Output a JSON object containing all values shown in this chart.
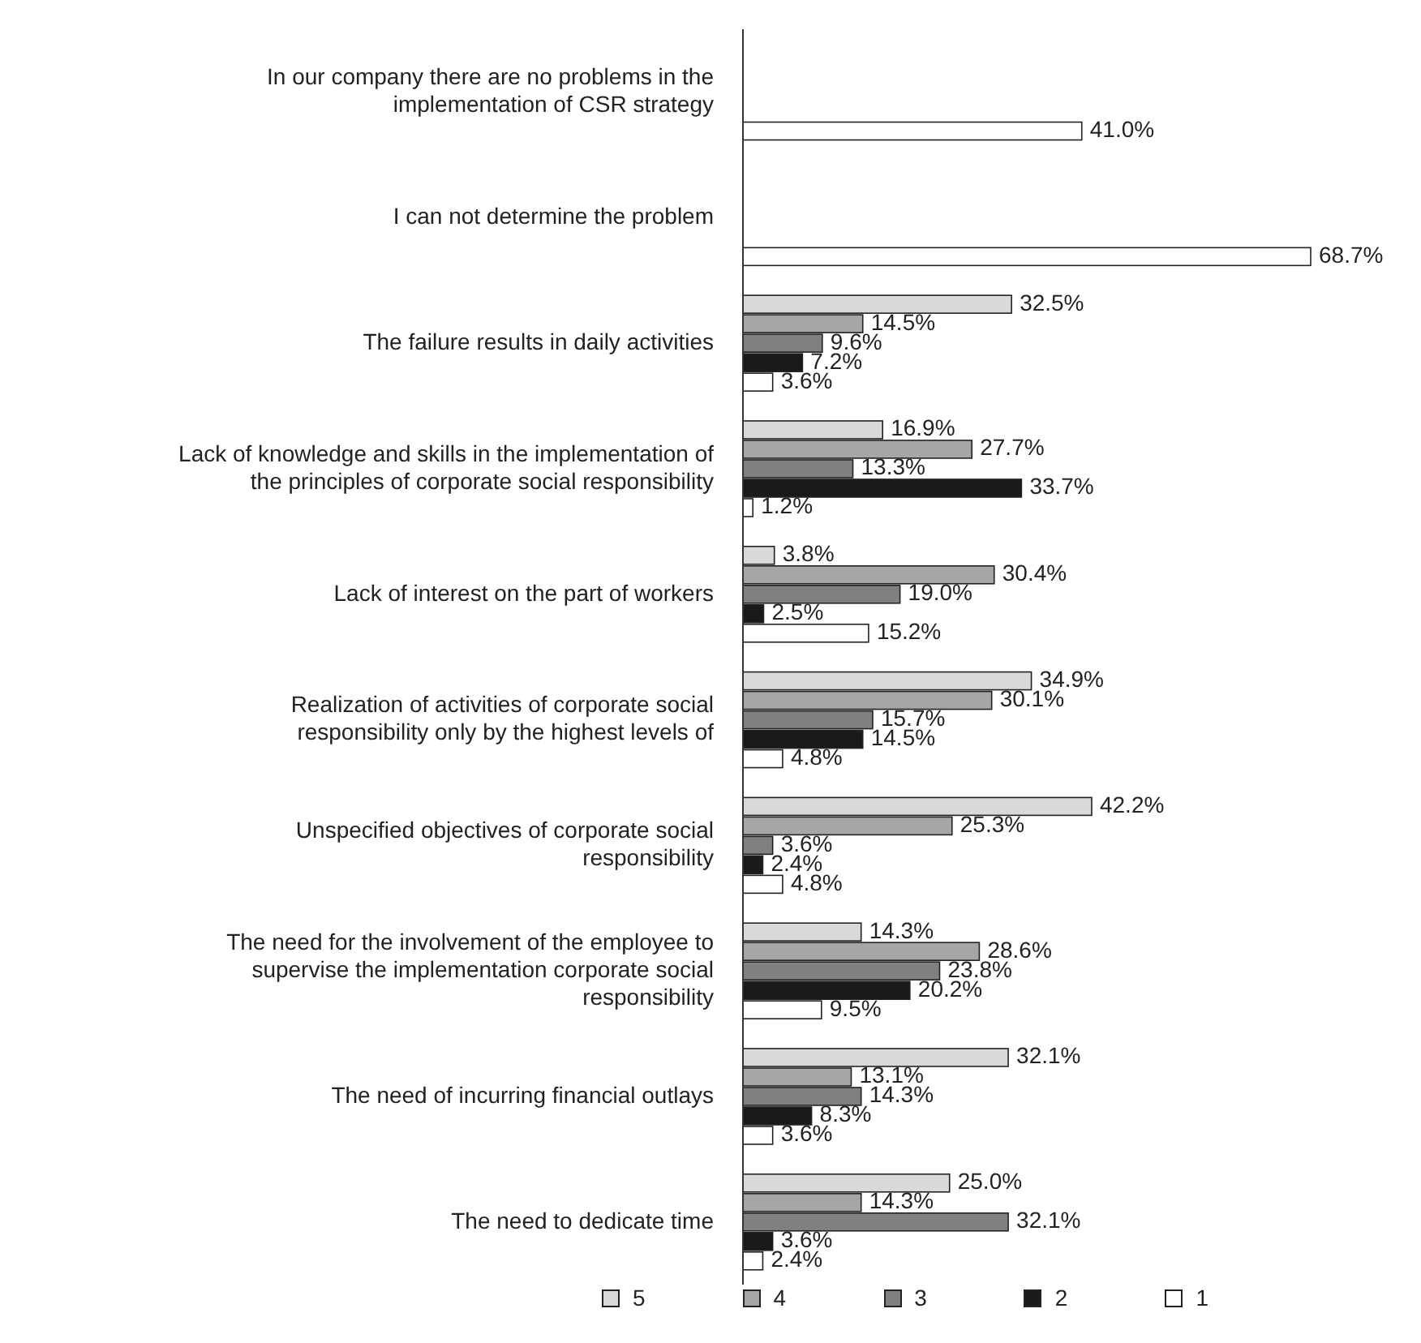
{
  "chart_data": {
    "type": "bar",
    "orientation": "horizontal",
    "categories": [
      "In our company there are no problems in the implementation of CSR strategy",
      "I can not determine the problem",
      "The failure results in daily activities",
      "Lack of knowledge and skills in the implementation of the principles of corporate social responsibility",
      "Lack of interest on the part of workers",
      "Realization of activities of corporate social responsibility only by the highest levels of",
      "Unspecified objectives of corporate social responsibility",
      "The need for the involvement of the employee to supervise the implementation corporate social responsibility",
      "The need of incurring financial outlays",
      "The need to dedicate time"
    ],
    "series": [
      {
        "name": "5",
        "color": "#d9d9d9",
        "values": [
          null,
          null,
          32.5,
          16.9,
          3.8,
          34.9,
          42.2,
          14.3,
          32.1,
          25.0
        ],
        "value_labels": [
          null,
          null,
          "32.5%",
          "16.9%",
          "3.8%",
          "34.9%",
          "42.2%",
          "14.3%",
          "32.1%",
          "25.0%"
        ]
      },
      {
        "name": "4",
        "color": "#a6a6a6",
        "values": [
          null,
          null,
          14.5,
          27.7,
          30.4,
          30.1,
          25.3,
          28.6,
          13.1,
          14.3
        ],
        "value_labels": [
          null,
          null,
          "14.5%",
          "27.7%",
          "30.4%",
          "30.1%",
          "25.3%",
          "28.6%",
          "13.1%",
          "14.3%"
        ]
      },
      {
        "name": "3",
        "color": "#808080",
        "values": [
          null,
          null,
          9.6,
          13.3,
          19.0,
          15.7,
          3.6,
          23.8,
          14.3,
          32.1
        ],
        "value_labels": [
          null,
          null,
          "9.6%",
          "13.3%",
          "19.0%",
          "15.7%",
          "3.6%",
          "23.8%",
          "14.3%",
          "32.1%"
        ]
      },
      {
        "name": "2",
        "color": "#1a1a1a",
        "values": [
          null,
          null,
          7.2,
          33.7,
          2.5,
          14.5,
          2.4,
          20.2,
          8.3,
          3.6
        ],
        "value_labels": [
          null,
          null,
          "7.2%",
          "33.7%",
          "2.5%",
          "14.5%",
          "2.4%",
          "20.2%",
          "8.3%",
          "3.6%"
        ]
      },
      {
        "name": "1",
        "color": "#ffffff",
        "values": [
          41.0,
          68.7,
          3.6,
          1.2,
          15.2,
          4.8,
          4.8,
          9.5,
          3.6,
          2.4
        ],
        "value_labels": [
          "41.0%",
          "68.7%",
          "3.6%",
          "1.2%",
          "15.2%",
          "4.8%",
          "4.8%",
          "9.5%",
          "3.6%",
          "2.4%"
        ]
      }
    ],
    "legend": "bottom",
    "grid": false
  }
}
